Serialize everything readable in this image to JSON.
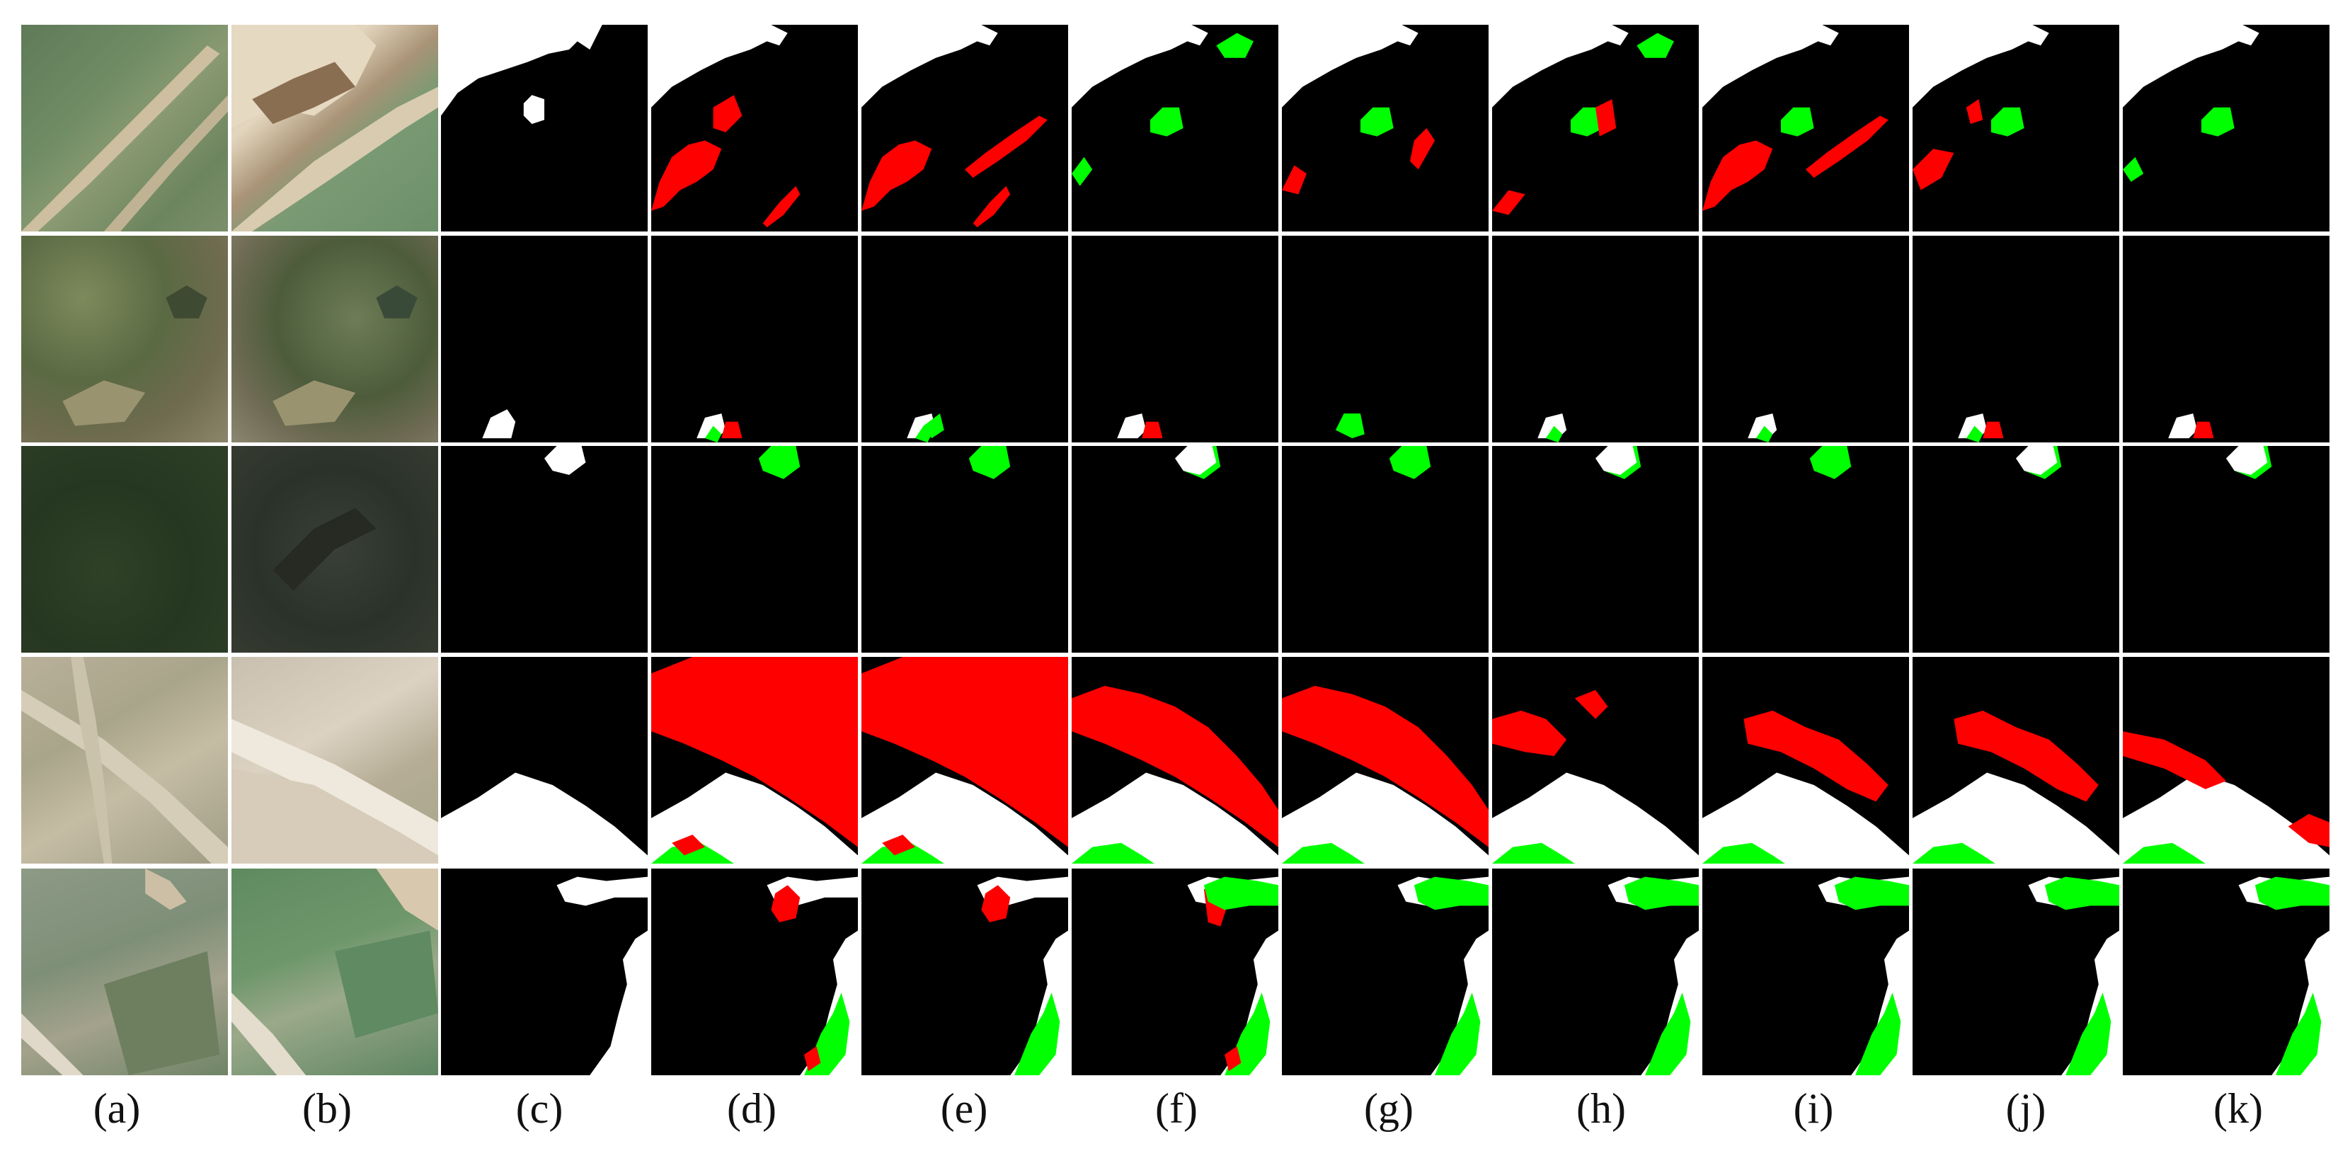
{
  "figure": {
    "column_labels": [
      "(a)",
      "(b)",
      "(c)",
      "(d)",
      "(e)",
      "(f)",
      "(g)",
      "(h)",
      "(i)",
      "(j)",
      "(k)"
    ],
    "colors": {
      "background": "#ffffff",
      "unchanged": "#000000",
      "true_positive": "#ffffff",
      "false_positive": "#ff0000",
      "false_negative": "#00ff00"
    },
    "rows": [
      {
        "scene": "quarry-and-roads"
      },
      {
        "scene": "shrubland"
      },
      {
        "scene": "forest"
      },
      {
        "scene": "dry-grassland-with-road"
      },
      {
        "scene": "field-with-road"
      }
    ]
  }
}
